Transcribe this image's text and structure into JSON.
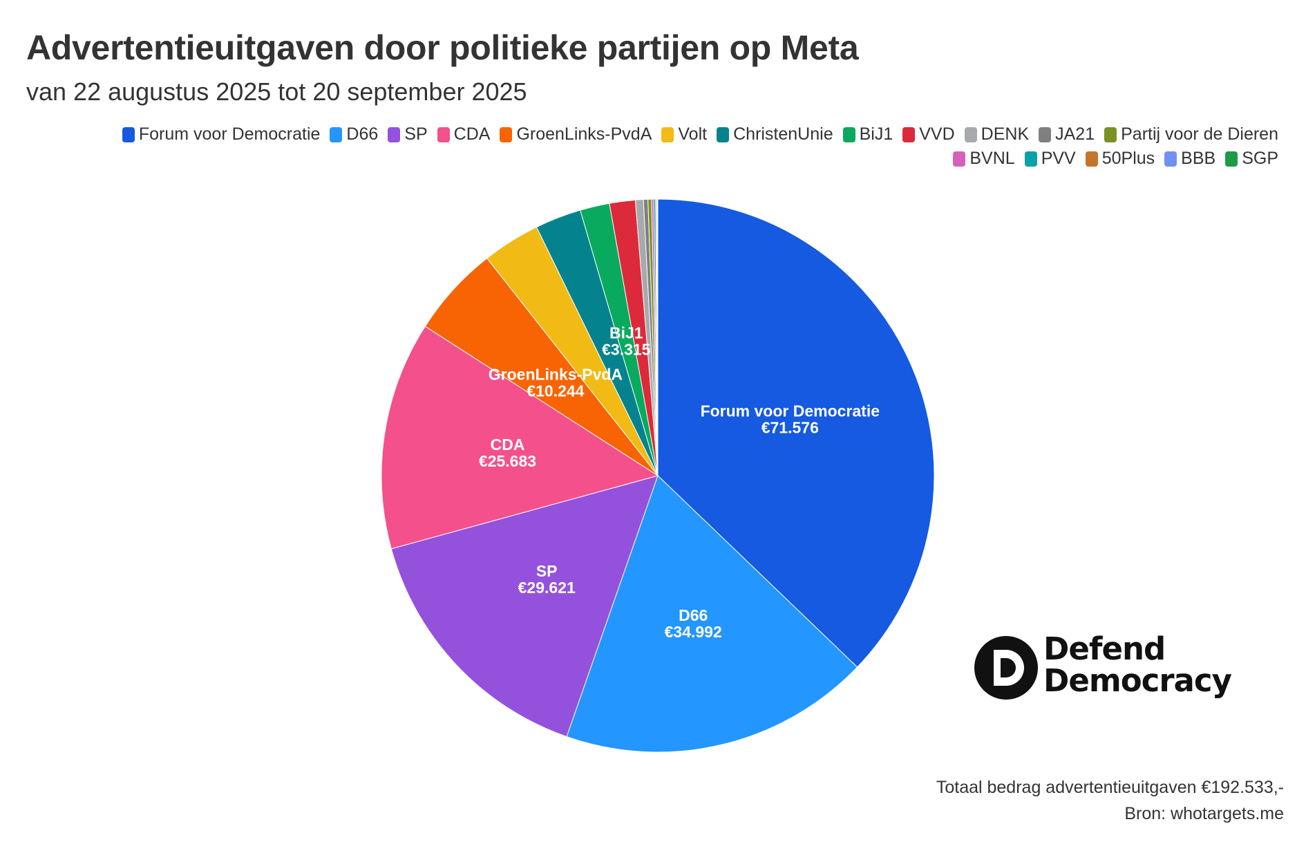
{
  "title": "Advertentieuitgaven door politieke partijen op Meta",
  "subtitle": "van 22 augustus 2025 tot 20 september 2025",
  "footer": {
    "total": "Totaal bedrag advertentieuitgaven €192.533,-",
    "source": "Bron: whotargets.me"
  },
  "logo": {
    "line1": "Defend",
    "line2": "Democracy"
  },
  "chart_data": {
    "type": "pie",
    "legend_position": "top-right",
    "slices": [
      {
        "name": "Forum voor Democratie",
        "value": 71576,
        "label": "€71.576",
        "color": "#155ae0"
      },
      {
        "name": "D66",
        "value": 34992,
        "label": "€34.992",
        "color": "#2396ff"
      },
      {
        "name": "SP",
        "value": 29621,
        "label": "€29.621",
        "color": "#9452dc"
      },
      {
        "name": "CDA",
        "value": 25683,
        "label": "€25.683",
        "color": "#f4508c"
      },
      {
        "name": "GroenLinks-PvdA",
        "value": 10244,
        "label": "€10.244",
        "color": "#f86404"
      },
      {
        "name": "Volt",
        "value": 6500,
        "color": "#f2ba14"
      },
      {
        "name": "ChristenUnie",
        "value": 5200,
        "color": "#04838e"
      },
      {
        "name": "BiJ1",
        "value": 3315,
        "label": "€3.315",
        "color": "#0aaa5e"
      },
      {
        "name": "VVD",
        "value": 2900,
        "color": "#dc2a3a"
      },
      {
        "name": "DENK",
        "value": 900,
        "color": "#a7a9ad"
      },
      {
        "name": "JA21",
        "value": 500,
        "color": "#808080"
      },
      {
        "name": "Partij voor de Dieren",
        "value": 400,
        "color": "#7a9222"
      },
      {
        "name": "BVNL",
        "value": 250,
        "color": "#d462ba"
      },
      {
        "name": "PVV",
        "value": 200,
        "color": "#0aa2a6"
      },
      {
        "name": "50Plus",
        "value": 120,
        "color": "#c6742c"
      },
      {
        "name": "BBB",
        "value": 80,
        "color": "#7290f0"
      },
      {
        "name": "SGP",
        "value": 52,
        "color": "#1e9a48"
      }
    ]
  }
}
